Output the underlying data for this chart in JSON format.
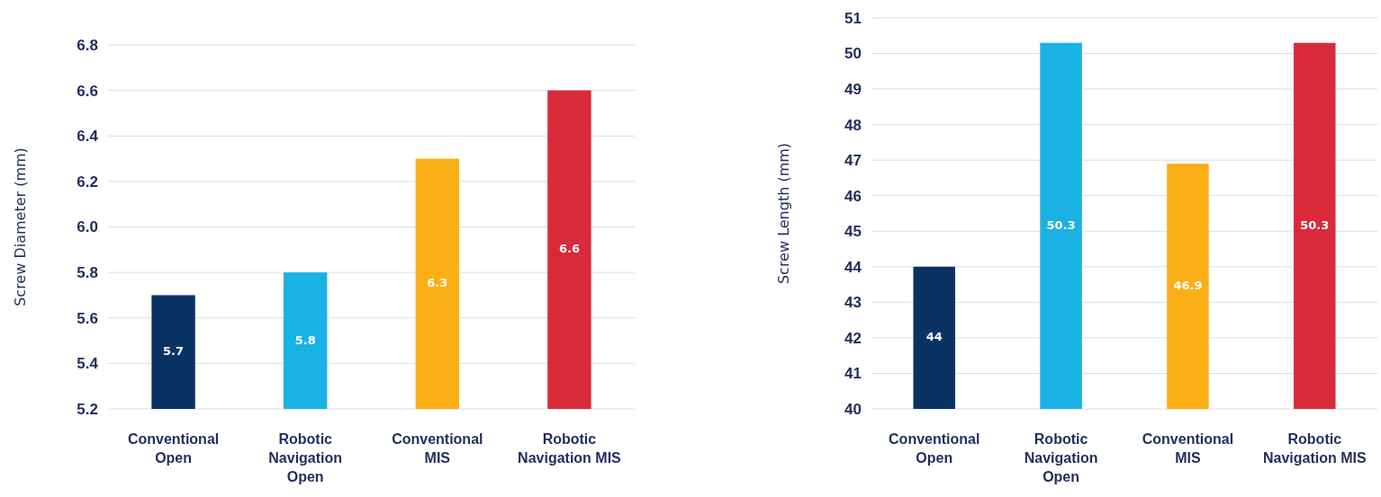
{
  "chart_data": [
    {
      "type": "bar",
      "ylabel": "Screw Diameter (mm)",
      "categories": [
        "Conventional Open",
        "Robotic Navigation Open",
        "Conventional MIS",
        "Robotic Navigation MIS"
      ],
      "values": [
        5.7,
        5.8,
        6.3,
        6.6
      ],
      "colors": [
        "#0a3364",
        "#19b2e2",
        "#fbaf17",
        "#d92a3a"
      ],
      "ylim": [
        5.2,
        6.8
      ],
      "yticks": [
        5.2,
        5.4,
        5.6,
        5.8,
        {
          "value": 6,
          "label": "6.0"
        },
        6.2,
        6.4,
        6.6,
        6.8
      ],
      "grid": "y",
      "data_labels": true
    },
    {
      "type": "bar",
      "ylabel": "Screw Length (mm)",
      "categories": [
        "Conventional Open",
        "Robotic Navigation Open",
        "Conventional MIS",
        "Robotic Navigation MIS"
      ],
      "values": [
        44,
        50.3,
        46.9,
        50.3
      ],
      "colors": [
        "#0a3364",
        "#19b2e2",
        "#fbaf17",
        "#d92a3a"
      ],
      "ylim": [
        40,
        51
      ],
      "yticks": [
        40,
        41,
        42,
        43,
        44,
        45,
        46,
        47,
        48,
        49,
        50,
        51
      ],
      "grid": "y",
      "data_labels": true
    }
  ]
}
